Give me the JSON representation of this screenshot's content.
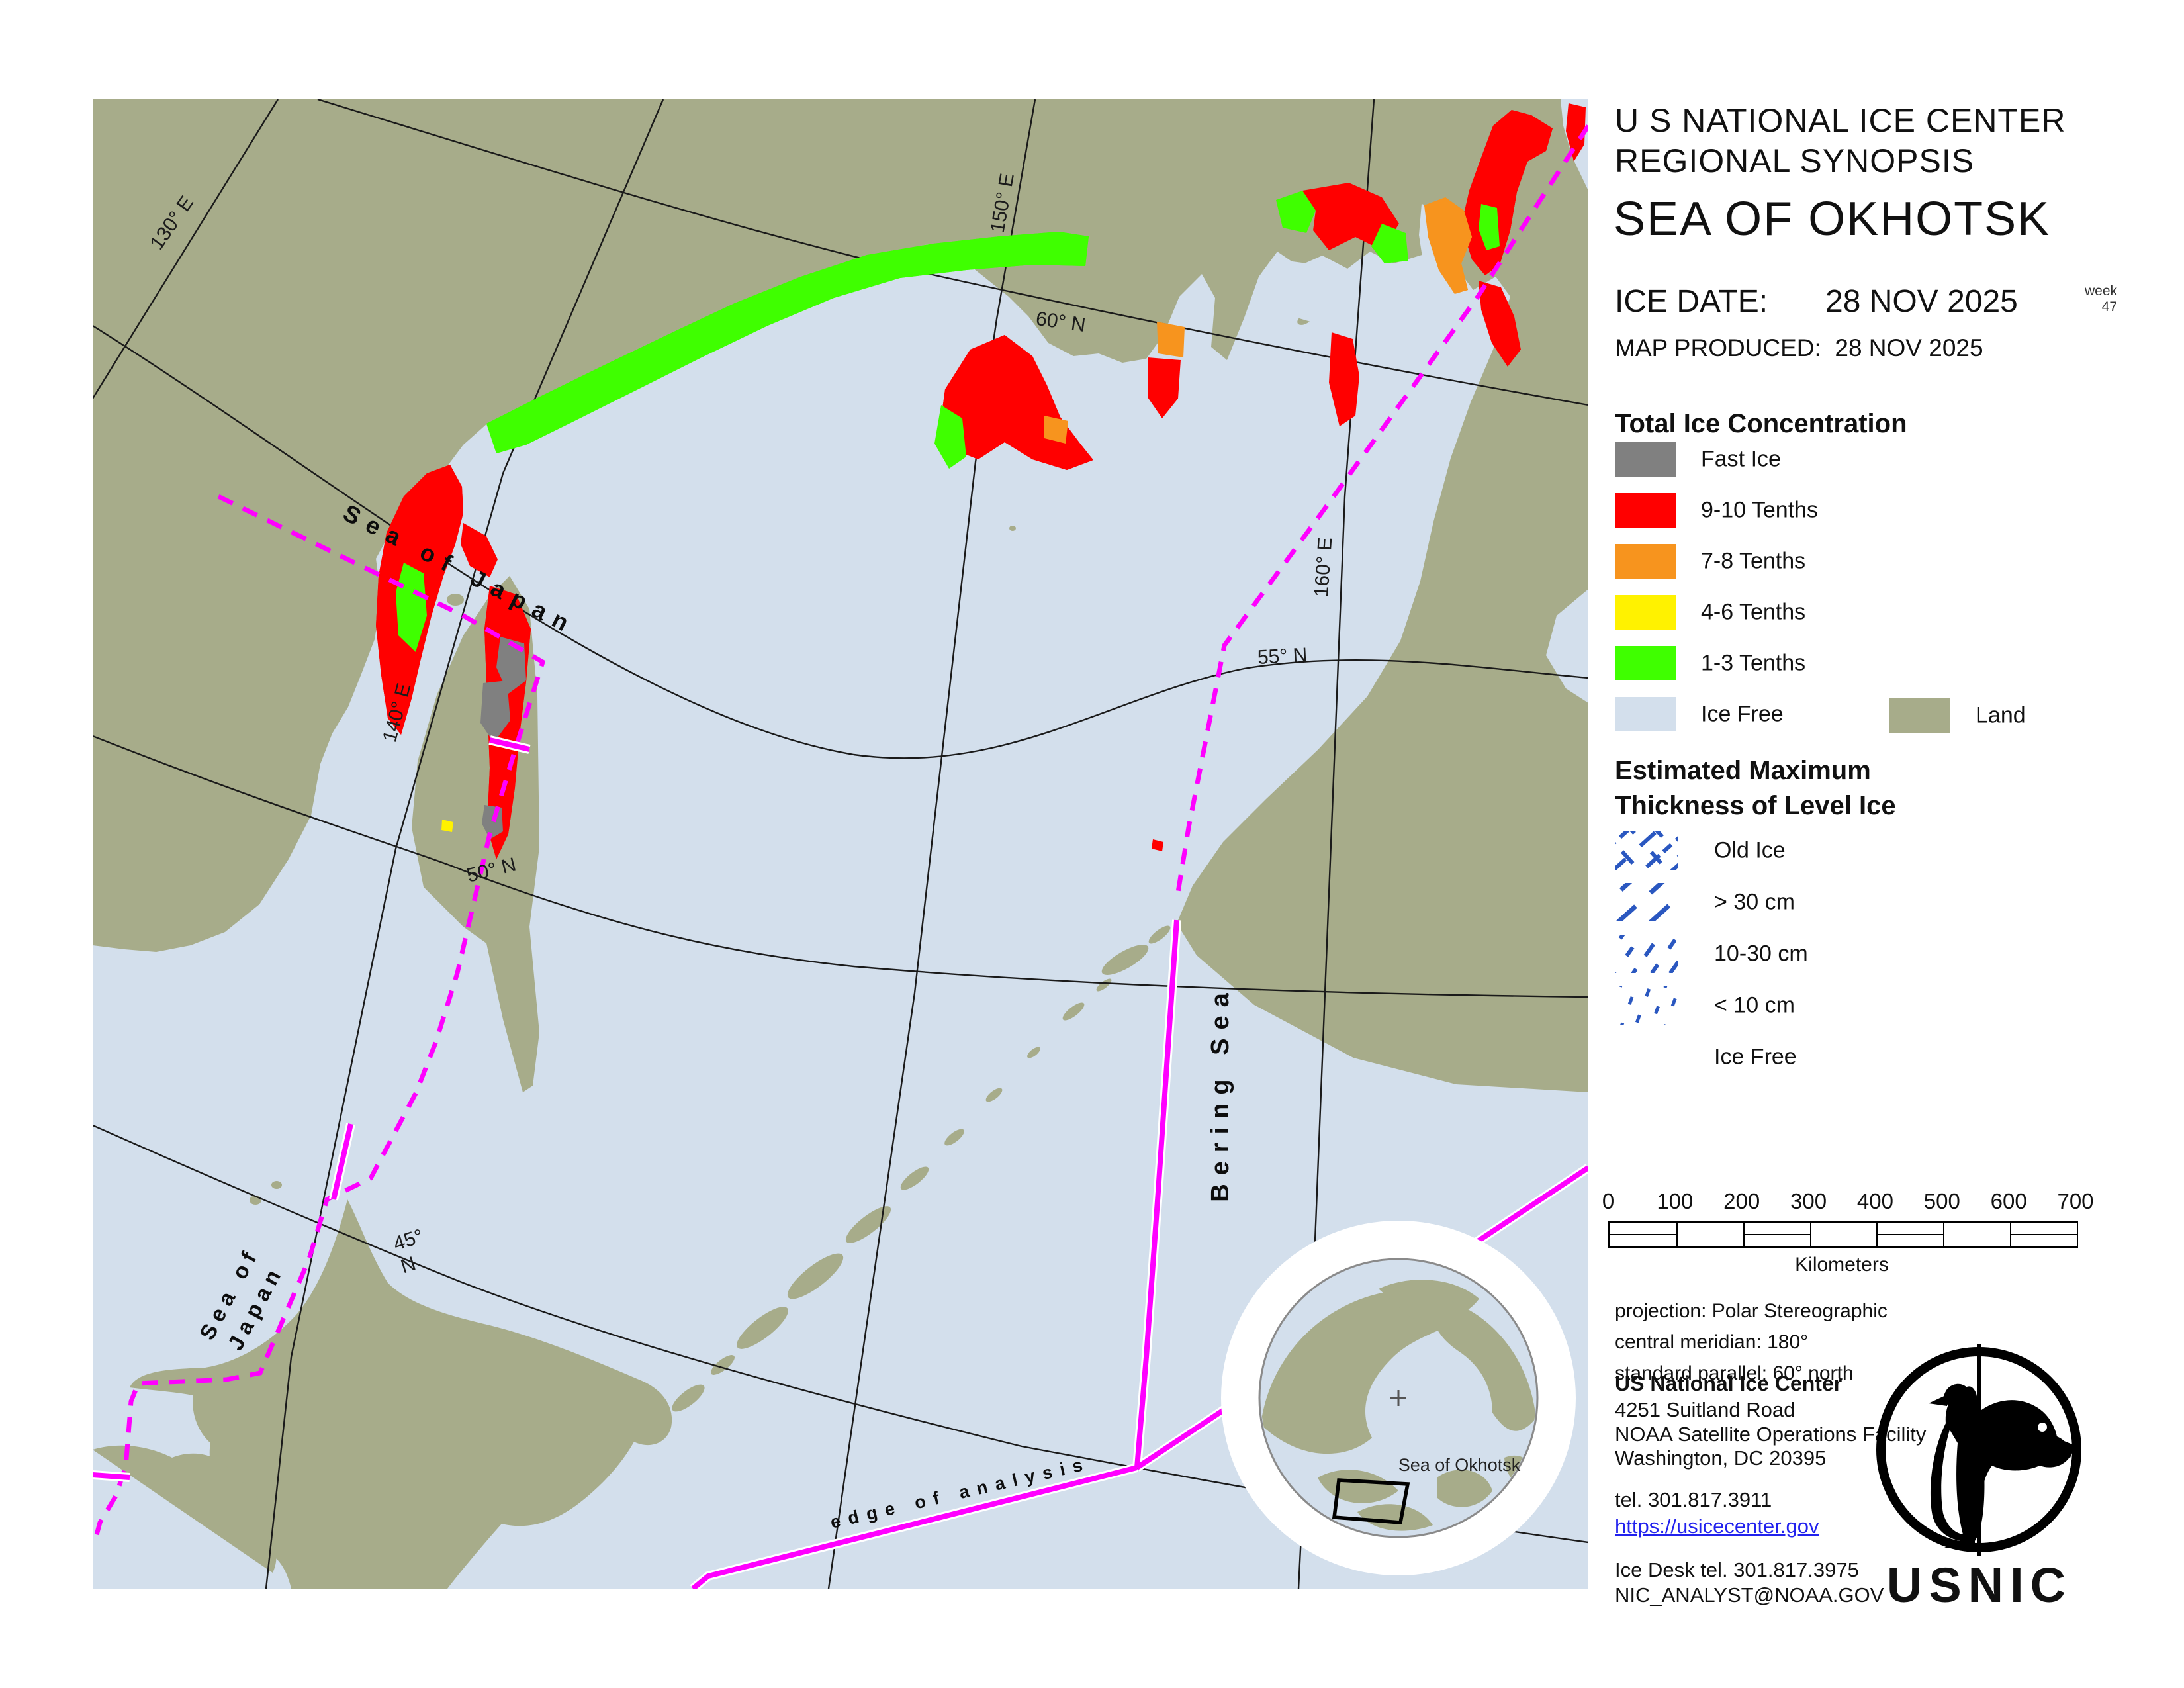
{
  "header": {
    "line1": "U S NATIONAL ICE CENTER",
    "line2": "REGIONAL SYNOPSIS",
    "region": "SEA OF OKHOTSK",
    "ice_date_label": "ICE DATE:",
    "ice_date_value": "28 NOV 2025",
    "week_label": "week",
    "week_value": "47",
    "produced_label": "MAP PRODUCED:",
    "produced_value": "28 NOV 2025"
  },
  "legend_concentration": {
    "title": "Total Ice Concentration",
    "items": [
      {
        "label": "Fast Ice",
        "color": "#808080"
      },
      {
        "label": "9-10 Tenths",
        "color": "#ff0000"
      },
      {
        "label": "7-8 Tenths",
        "color": "#f7941e"
      },
      {
        "label": "4-6 Tenths",
        "color": "#fff200"
      },
      {
        "label": "1-3 Tenths",
        "color": "#3fff00"
      },
      {
        "label": "Ice Free",
        "color": "#d3dfec"
      }
    ],
    "land": {
      "label": "Land",
      "color": "#a7ac8a"
    }
  },
  "legend_thickness": {
    "title_line1": "Estimated Maximum",
    "title_line2": "Thickness of Level Ice",
    "items": [
      {
        "label": "Old Ice",
        "pattern": "pold"
      },
      {
        "label": "> 30 cm",
        "pattern": "pgt30"
      },
      {
        "label": "10-30 cm",
        "pattern": "p1030"
      },
      {
        "label": "< 10 cm",
        "pattern": "plt10"
      },
      {
        "label": "Ice Free",
        "pattern": ""
      }
    ]
  },
  "scalebar": {
    "ticks": [
      "0",
      "100",
      "200",
      "300",
      "400",
      "500",
      "600",
      "700"
    ],
    "unit": "Kilometers"
  },
  "projection": {
    "line1": "projection: Polar Stereographic",
    "line2": "central meridian: 180°",
    "line3": "standard parallel:  60° north"
  },
  "contact": {
    "org": "US National Ice Center",
    "addr1": "4251 Suitland Road",
    "addr2": "NOAA Satellite Operations Facility",
    "addr3": "Washington, DC  20395",
    "tel": "tel. 301.817.3911",
    "url": "https://usicecenter.gov",
    "ice_desk": "Ice Desk tel. 301.817.3975",
    "email": "NIC_ANALYST@NOAA.GOV"
  },
  "logo": {
    "text": "USNIC"
  },
  "inset": {
    "label": "Sea of Okhotsk"
  },
  "map_labels": {
    "sea_of_japan_1": "Sea of Japan",
    "sea_of_japan_2a": "Sea of",
    "sea_of_japan_2b": "Japan",
    "bering_sea": "Bering Sea",
    "edge_of_analysis": "edge of analysis",
    "m130": "130° E",
    "m140": "140° E",
    "m150": "150° E",
    "m160": "160° E",
    "p45a": "45°",
    "p45b": "N",
    "p50": "50° N",
    "p55": "55° N",
    "p60": "60° N"
  },
  "colors": {
    "sea": "#d3dfec",
    "land": "#a7ac8a",
    "fast_ice": "#808080",
    "conc_9_10": "#ff0000",
    "conc_7_8": "#f7941e",
    "conc_4_6": "#fff200",
    "conc_1_3": "#3fff00",
    "boundary_magenta": "#ff00ff",
    "thickness_dash_blue": "#2a57c0",
    "graticule": "#1a1a1a",
    "link_blue": "#2222ee"
  }
}
